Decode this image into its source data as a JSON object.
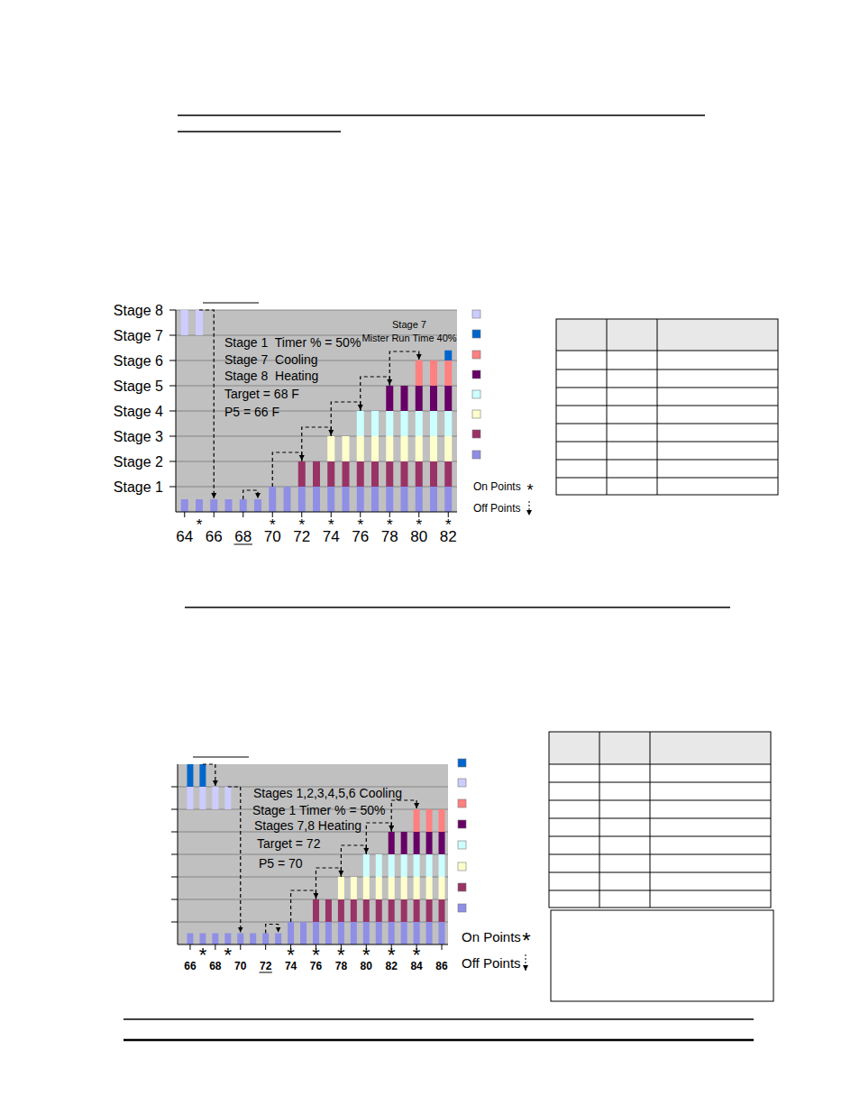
{
  "chart_data": [
    {
      "type": "bar",
      "x": [
        64,
        65,
        66,
        67,
        68,
        69,
        70,
        71,
        72,
        73,
        74,
        75,
        76,
        77,
        78,
        79,
        80,
        81,
        82
      ],
      "xlim": [
        63.4,
        82.6
      ],
      "xticks": [
        64,
        66,
        68,
        70,
        72,
        74,
        76,
        78,
        80,
        82
      ],
      "ylim": [
        0,
        8
      ],
      "yticks": [
        {
          "value": 1,
          "label": "Stage 1"
        },
        {
          "value": 2,
          "label": "Stage 2"
        },
        {
          "value": 3,
          "label": "Stage 3"
        },
        {
          "value": 4,
          "label": "Stage 4"
        },
        {
          "value": 5,
          "label": "Stage 5"
        },
        {
          "value": 6,
          "label": "Stage 6"
        },
        {
          "value": 7,
          "label": "Stage 7"
        },
        {
          "value": 8,
          "label": "Stage 8"
        }
      ],
      "grid": true,
      "target": 68,
      "series": [
        {
          "color": "#8f8fe6",
          "values": [
            0.5,
            0.5,
            0.5,
            0.5,
            0.5,
            0.5,
            1,
            1,
            1,
            1,
            1,
            1,
            1,
            1,
            1,
            1,
            1,
            1,
            1
          ]
        },
        {
          "color": "#993366",
          "values": [
            0,
            0,
            0,
            0,
            0,
            0,
            0,
            0,
            1,
            1,
            1,
            1,
            1,
            1,
            1,
            1,
            1,
            1,
            1
          ]
        },
        {
          "color": "#ffffcc",
          "values": [
            0,
            0,
            0,
            0,
            0,
            0,
            0,
            0,
            0,
            0,
            1,
            1,
            1,
            1,
            1,
            1,
            1,
            1,
            1
          ]
        },
        {
          "color": "#ccffff",
          "values": [
            0,
            0,
            0,
            0,
            0,
            0,
            0,
            0,
            0,
            0,
            0,
            0,
            1,
            1,
            1,
            1,
            1,
            1,
            1
          ]
        },
        {
          "color": "#660066",
          "values": [
            0,
            0,
            0,
            0,
            0,
            0,
            0,
            0,
            0,
            0,
            0,
            0,
            0,
            0,
            1,
            1,
            1,
            1,
            1
          ]
        },
        {
          "color": "#ff8080",
          "values": [
            0,
            0,
            0,
            0,
            0,
            0,
            0,
            0,
            0,
            0,
            0,
            0,
            0,
            0,
            0,
            0,
            1,
            1,
            1
          ]
        },
        {
          "color": "#0066cc",
          "values": [
            0,
            0,
            0,
            0,
            0,
            0,
            0,
            0,
            0,
            0,
            0,
            0,
            0,
            0,
            0,
            0,
            0,
            0,
            0.4
          ]
        },
        {
          "color": "#ccccff",
          "values": [
            1,
            1,
            0,
            0,
            0,
            0,
            0,
            0,
            0,
            0,
            0,
            0,
            0,
            0,
            0,
            0,
            0,
            0,
            0
          ]
        }
      ],
      "annotations": [
        "Stage 1  Timer % = 50%",
        "Stage 7  Cooling",
        "Stage 8  Heating",
        "Target = 68 F",
        "P5 = 66 F",
        "Stage 7",
        "Mister Run Time 40%"
      ],
      "on_point_symbol": "*",
      "on_points": [
        65,
        70,
        72,
        74,
        76,
        78,
        80,
        82
      ],
      "off_points": [
        {
          "x": 66,
          "stage": 8
        },
        {
          "x": 68,
          "stage": 1
        },
        {
          "x": 70,
          "stage": 2
        },
        {
          "x": 72,
          "stage": 3
        },
        {
          "x": 74,
          "stage": 4
        },
        {
          "x": 76,
          "stage": 5
        },
        {
          "x": 78,
          "stage": 6
        }
      ],
      "on_label": "On Points",
      "off_label": "Off Points"
    },
    {
      "type": "bar",
      "x": [
        66,
        67,
        68,
        69,
        70,
        71,
        72,
        73,
        74,
        75,
        76,
        77,
        78,
        79,
        80,
        81,
        82,
        83,
        84,
        85,
        86
      ],
      "xlim": [
        65,
        86.5
      ],
      "xticks": [
        66,
        68,
        70,
        72,
        74,
        76,
        78,
        80,
        82,
        84,
        86
      ],
      "ylim": [
        0,
        8
      ],
      "yticks": [
        1,
        2,
        3,
        4,
        5,
        6,
        7
      ],
      "tick_labels": "x",
      "grid": true,
      "target": 72,
      "series": [
        {
          "color": "#8f8fe6",
          "values": [
            0.5,
            0.5,
            0.5,
            0.5,
            0.5,
            0.5,
            0.5,
            0.5,
            1,
            1,
            1,
            1,
            1,
            1,
            1,
            1,
            1,
            1,
            1,
            1,
            1
          ]
        },
        {
          "color": "#993366",
          "values": [
            0,
            0,
            0,
            0,
            0,
            0,
            0,
            0,
            0,
            0,
            1,
            1,
            1,
            1,
            1,
            1,
            1,
            1,
            1,
            1,
            1
          ]
        },
        {
          "color": "#ffffcc",
          "values": [
            0,
            0,
            0,
            0,
            0,
            0,
            0,
            0,
            0,
            0,
            0,
            0,
            1,
            1,
            1,
            1,
            1,
            1,
            1,
            1,
            1
          ]
        },
        {
          "color": "#ccffff",
          "values": [
            0,
            0,
            0,
            0,
            0,
            0,
            0,
            0,
            0,
            0,
            0,
            0,
            0,
            0,
            1,
            1,
            1,
            1,
            1,
            1,
            1
          ]
        },
        {
          "color": "#660066",
          "values": [
            0,
            0,
            0,
            0,
            0,
            0,
            0,
            0,
            0,
            0,
            0,
            0,
            0,
            0,
            0,
            0,
            1,
            1,
            1,
            1,
            1
          ]
        },
        {
          "color": "#ff8080",
          "values": [
            0,
            0,
            0,
            0,
            0,
            0,
            0,
            0,
            0,
            0,
            0,
            0,
            0,
            0,
            0,
            0,
            0,
            0,
            1,
            1,
            1
          ]
        },
        {
          "color": "#ccccff",
          "values": [
            1,
            1,
            1,
            1,
            0,
            0,
            0,
            0,
            0,
            0,
            0,
            0,
            0,
            0,
            0,
            0,
            0,
            0,
            0,
            0,
            0
          ]
        },
        {
          "color": "#0066cc",
          "values": [
            1,
            1,
            0,
            0,
            0,
            0,
            0,
            0,
            0,
            0,
            0,
            0,
            0,
            0,
            0,
            0,
            0,
            0,
            0,
            0,
            0
          ]
        }
      ],
      "annotations": [
        "Stages 1,2,3,4,5,6 Cooling",
        "Stage 1 Timer % = 50%",
        "Stages 7,8 Heating",
        "Target = 72",
        "P5 = 70"
      ],
      "on_point_symbol": "*",
      "on_points": [
        67,
        69,
        74,
        76,
        78,
        80,
        82,
        84
      ],
      "off_points": [
        {
          "x": 68,
          "stage": 8
        },
        {
          "x": 70,
          "stage": 7
        },
        {
          "x": 72,
          "stage": 1
        },
        {
          "x": 74,
          "stage": 2
        },
        {
          "x": 76,
          "stage": 3
        },
        {
          "x": 78,
          "stage": 4
        },
        {
          "x": 80,
          "stage": 5
        },
        {
          "x": 82,
          "stage": 6
        }
      ],
      "on_label": "On Points",
      "off_label": "Off Points"
    }
  ]
}
